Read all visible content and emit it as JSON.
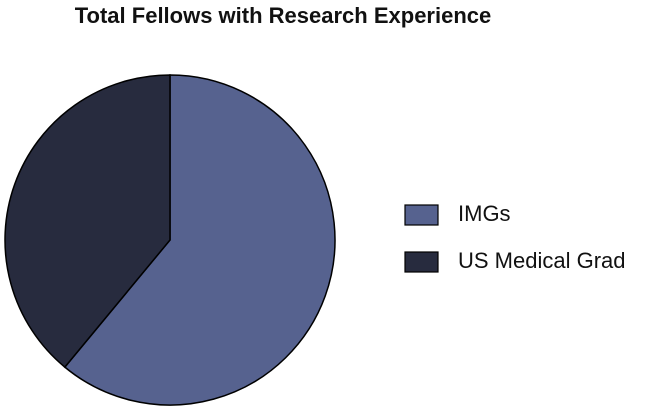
{
  "chart_data": {
    "type": "pie",
    "title": "Total Fellows with Research Experience",
    "categories": [
      "IMGs",
      "US Medical Grad"
    ],
    "values": [
      61,
      39
    ],
    "colors": [
      "#56628f",
      "#272b3e"
    ],
    "start_angle": 0,
    "direction": "clockwise",
    "legend": "right"
  }
}
